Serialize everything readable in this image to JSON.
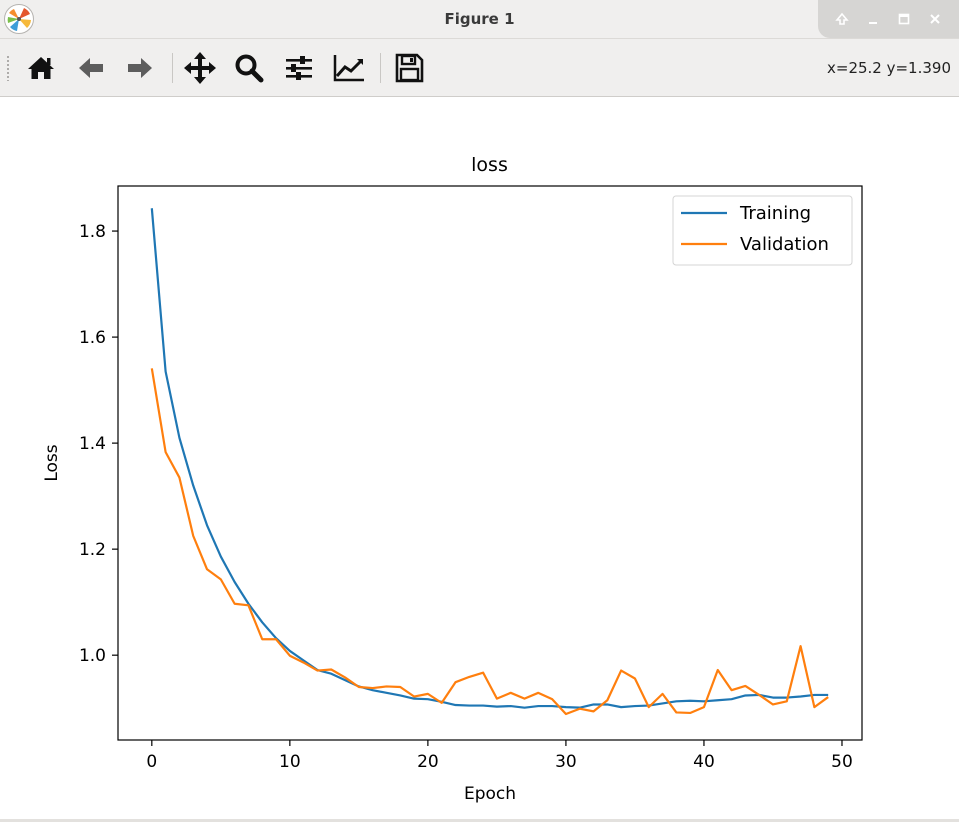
{
  "window": {
    "title": "Figure 1"
  },
  "toolbar": {
    "buttons": [
      "home-icon",
      "back-icon",
      "forward-icon",
      "pan-icon",
      "zoom-icon",
      "subplots-icon",
      "customize-icon",
      "save-icon"
    ],
    "coords": "x=25.2 y=1.390"
  },
  "colors": {
    "training": "#1f77b4",
    "validation": "#ff7f0e"
  },
  "chart_data": {
    "type": "line",
    "title": "loss",
    "xlabel": "Epoch",
    "ylabel": "Loss",
    "xlim": [
      -2.45,
      51.45
    ],
    "ylim": [
      0.84,
      1.885
    ],
    "xticks": [
      0,
      10,
      20,
      30,
      40,
      50
    ],
    "yticks": [
      1.0,
      1.2,
      1.4,
      1.6,
      1.8
    ],
    "xtick_labels": [
      "0",
      "10",
      "20",
      "30",
      "40",
      "50"
    ],
    "ytick_labels": [
      "1.0",
      "1.2",
      "1.4",
      "1.6",
      "1.8"
    ],
    "grid": false,
    "legend": "upper right",
    "x": [
      0,
      1,
      2,
      3,
      4,
      5,
      6,
      7,
      8,
      9,
      10,
      11,
      12,
      13,
      14,
      15,
      16,
      17,
      18,
      19,
      20,
      21,
      22,
      23,
      24,
      25,
      26,
      27,
      28,
      29,
      30,
      31,
      32,
      33,
      34,
      35,
      36,
      37,
      38,
      39,
      40,
      41,
      42,
      43,
      44,
      45,
      46,
      47,
      48,
      49
    ],
    "series": [
      {
        "name": "Training",
        "values": [
          1.843,
          1.535,
          1.41,
          1.32,
          1.245,
          1.186,
          1.138,
          1.097,
          1.062,
          1.032,
          1.008,
          0.99,
          0.972,
          0.965,
          0.953,
          0.941,
          0.934,
          0.929,
          0.924,
          0.918,
          0.917,
          0.912,
          0.906,
          0.905,
          0.905,
          0.903,
          0.904,
          0.901,
          0.904,
          0.904,
          0.902,
          0.901,
          0.907,
          0.907,
          0.902,
          0.904,
          0.905,
          0.909,
          0.913,
          0.914,
          0.913,
          0.915,
          0.917,
          0.924,
          0.925,
          0.92,
          0.92,
          0.922,
          0.925,
          0.925
        ]
      },
      {
        "name": "Validation",
        "values": [
          1.541,
          1.383,
          1.335,
          1.225,
          1.162,
          1.143,
          1.097,
          1.094,
          1.03,
          1.03,
          0.999,
          0.986,
          0.971,
          0.973,
          0.958,
          0.94,
          0.938,
          0.941,
          0.94,
          0.922,
          0.927,
          0.91,
          0.949,
          0.959,
          0.967,
          0.918,
          0.929,
          0.918,
          0.929,
          0.917,
          0.889,
          0.899,
          0.894,
          0.915,
          0.971,
          0.956,
          0.902,
          0.927,
          0.892,
          0.891,
          0.902,
          0.972,
          0.934,
          0.942,
          0.925,
          0.907,
          0.913,
          1.017,
          0.902,
          0.921
        ]
      }
    ]
  }
}
